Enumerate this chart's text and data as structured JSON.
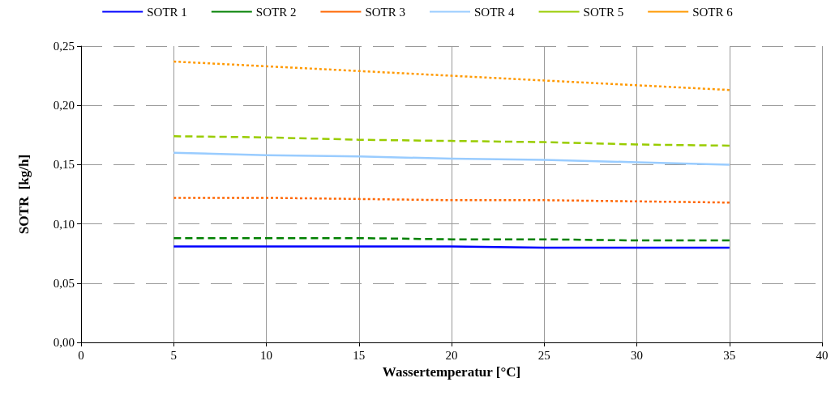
{
  "chart_data": {
    "type": "line",
    "xlabel": "Wassertemperatur [°C]",
    "ylabel": "SOTR  [kg/h]",
    "x": [
      5,
      10,
      15,
      20,
      25,
      30,
      35
    ],
    "xlim": [
      0,
      40
    ],
    "xticks": [
      0,
      5,
      10,
      15,
      20,
      25,
      30,
      35,
      40
    ],
    "ylim": [
      0,
      0.25
    ],
    "yticks": [
      {
        "value": 0,
        "label": "0,00"
      },
      {
        "value": 0.05,
        "label": "0,05"
      },
      {
        "value": 0.1,
        "label": "0,10"
      },
      {
        "value": 0.15,
        "label": "0,15"
      },
      {
        "value": 0.2,
        "label": "0,20"
      },
      {
        "value": 0.25,
        "label": "0,25"
      }
    ],
    "grid": true,
    "legend": "top",
    "marker": "none",
    "series": [
      {
        "name": "SOTR 1",
        "color": "#0000ff",
        "line_style": "solid",
        "values": [
          0.081,
          0.081,
          0.081,
          0.081,
          0.08,
          0.08,
          0.08
        ]
      },
      {
        "name": "SOTR 2",
        "color": "#008000",
        "line_style": "dashed",
        "values": [
          0.088,
          0.088,
          0.088,
          0.087,
          0.087,
          0.086,
          0.086
        ]
      },
      {
        "name": "SOTR 3",
        "color": "#ff6600",
        "line_style": "dotted",
        "values": [
          0.122,
          0.122,
          0.121,
          0.12,
          0.12,
          0.119,
          0.118
        ]
      },
      {
        "name": "SOTR 4",
        "color": "#99ccff",
        "line_style": "solid",
        "values": [
          0.16,
          0.158,
          0.157,
          0.155,
          0.154,
          0.152,
          0.15
        ]
      },
      {
        "name": "SOTR 5",
        "color": "#99cc00",
        "line_style": "dashed",
        "values": [
          0.174,
          0.173,
          0.171,
          0.17,
          0.169,
          0.167,
          0.166
        ]
      },
      {
        "name": "SOTR 6",
        "color": "#ff9900",
        "line_style": "dotted",
        "values": [
          0.237,
          0.233,
          0.229,
          0.225,
          0.221,
          0.217,
          0.213
        ]
      }
    ]
  }
}
